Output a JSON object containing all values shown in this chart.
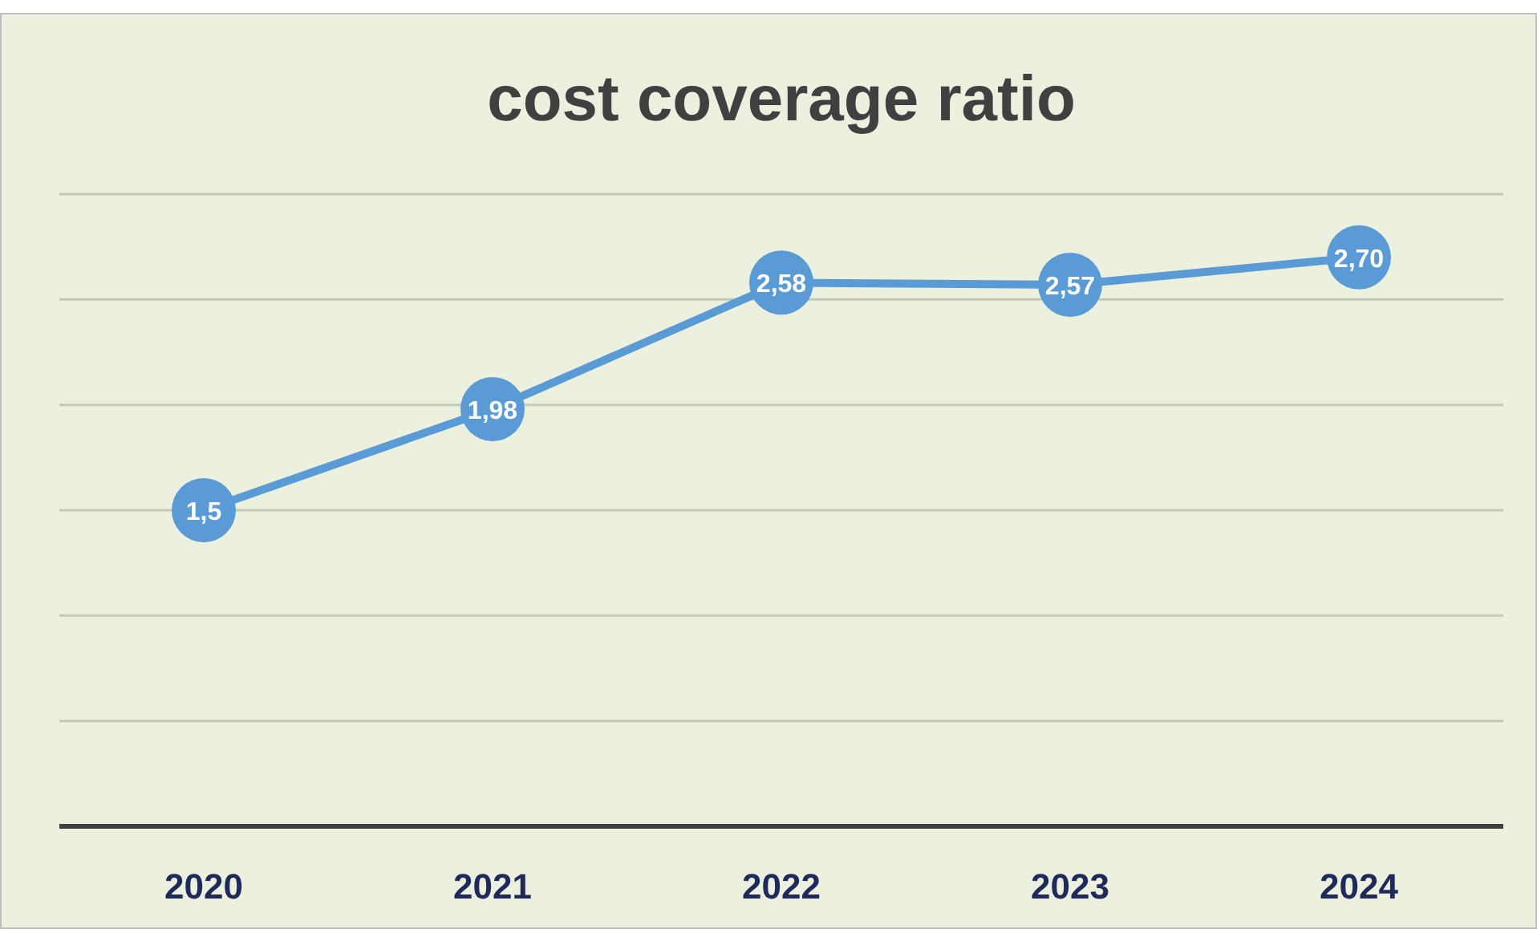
{
  "chart_data": {
    "type": "line",
    "title": "cost coverage ratio",
    "categories": [
      "2020",
      "2021",
      "2022",
      "2023",
      "2024"
    ],
    "series": [
      {
        "color": "#5b9bd5",
        "values": [
          1.5,
          1.98,
          2.58,
          2.57,
          2.7
        ],
        "value_labels": [
          "1,5",
          "1,98",
          "2,58",
          "2,57",
          "2,70"
        ]
      }
    ],
    "ylim": [
      0,
      3
    ],
    "yticks": [
      {
        "value": 0,
        "label": null
      },
      {
        "value": 0.5,
        "label": null
      },
      {
        "value": 1,
        "label": null
      },
      {
        "value": 1.5,
        "label": null
      },
      {
        "value": 2,
        "label": null
      },
      {
        "value": 2.5,
        "label": null
      },
      {
        "value": 3,
        "label": null
      }
    ],
    "grid": "y",
    "marker": "circle",
    "line_style": "solid",
    "tick_labels": "x"
  }
}
